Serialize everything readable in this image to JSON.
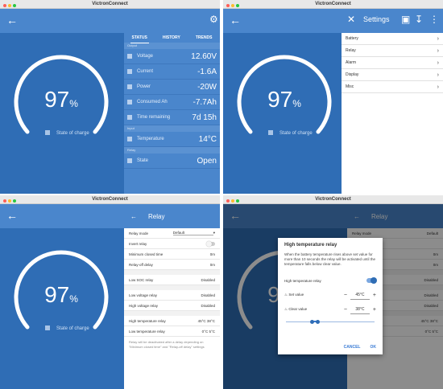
{
  "app_title": "VictronConnect",
  "gauge": {
    "percent": "97",
    "unit": "%",
    "label": "State of charge",
    "fill": 0.97
  },
  "status": {
    "tabs": [
      "STATUS",
      "HISTORY",
      "TRENDS"
    ],
    "output_section": "Output",
    "input_section": "Input",
    "relay_section": "Relay",
    "rows": [
      {
        "label": "Voltage",
        "value": "12.60V"
      },
      {
        "label": "Current",
        "value": "-1.6A"
      },
      {
        "label": "Power",
        "value": "-20W"
      },
      {
        "label": "Consumed Ah",
        "value": "-7.7Ah"
      },
      {
        "label": "Time remaining",
        "value": "7d 15h"
      }
    ],
    "input_rows": [
      {
        "label": "Temperature",
        "value": "14°C"
      }
    ],
    "relay_rows": [
      {
        "label": "State",
        "value": "Open"
      }
    ]
  },
  "settings": {
    "title": "Settings",
    "items": [
      "Battery",
      "Relay",
      "Alarm",
      "Display",
      "Misc"
    ]
  },
  "relay": {
    "title": "Relay",
    "mode_label": "Relay mode",
    "mode_value": "Default",
    "invert_label": "Invert relay",
    "min_closed_label": "Minimum closed time",
    "min_closed_value": "0m",
    "off_delay_label": "Relay-off delay",
    "off_delay_value": "0m",
    "low_soc_label": "Low SOC relay",
    "low_soc_value": "Disabled",
    "low_v_label": "Low voltage relay",
    "low_v_value": "Disabled",
    "high_v_label": "High voltage relay",
    "high_v_value": "Disabled",
    "high_t_label": "High temperature relay",
    "high_t_value": "45°C  38°C",
    "low_t_label": "Low temperature relay",
    "low_t_value": "0°C  5°C",
    "note": "Relay will be deactivated after a delay depending on \"Minimum closed time\" and \"Relay-off delay\" settings"
  },
  "dialog": {
    "title": "High temperature relay",
    "text": "When the battery temperature rises above set value for more than 10 seconds the relay will be activated until the temperature falls below clear value.",
    "toggle_label": "High temperature relay",
    "set_label": "Set value",
    "set_value": "45°C",
    "clear_label": "Clear value",
    "clear_value": "38°C",
    "cancel": "CANCEL",
    "ok": "OK"
  }
}
